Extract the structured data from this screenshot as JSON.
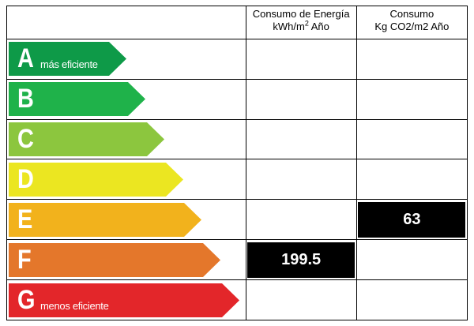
{
  "header": {
    "energy_line1": "Consumo de Energía",
    "energy_line2_base": "kWh/m",
    "energy_line2_sup": "2",
    "energy_line2_rest": " Año",
    "co2_line1": "Consumo",
    "co2_line2": "Kg CO2/m2 Año"
  },
  "scale": [
    {
      "letter": "A",
      "sublabel": "más eficiente",
      "color": "#0e9a48",
      "length": 0.5
    },
    {
      "letter": "B",
      "sublabel": "",
      "color": "#1fb24a",
      "length": 0.58
    },
    {
      "letter": "C",
      "sublabel": "",
      "color": "#8cc63e",
      "length": 0.66
    },
    {
      "letter": "D",
      "sublabel": "",
      "color": "#ebe621",
      "length": 0.74
    },
    {
      "letter": "E",
      "sublabel": "",
      "color": "#f2b21c",
      "length": 0.82
    },
    {
      "letter": "F",
      "sublabel": "",
      "color": "#e4772b",
      "length": 0.9
    },
    {
      "letter": "G",
      "sublabel": "menos eficiente",
      "color": "#e3262a",
      "length": 0.98
    }
  ],
  "ratings": {
    "energy": {
      "class": "F",
      "value": "199.5"
    },
    "co2": {
      "class": "E",
      "value": "63"
    }
  }
}
